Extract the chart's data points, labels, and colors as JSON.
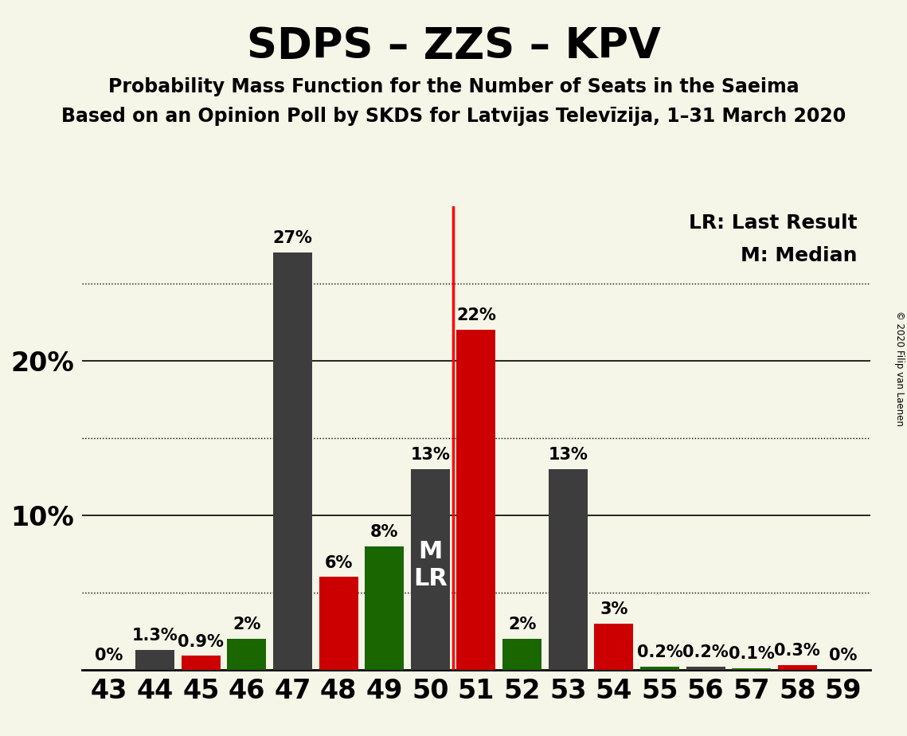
{
  "title": "SDPS – ZZS – KPV",
  "subtitle1": "Probability Mass Function for the Number of Seats in the Saeima",
  "subtitle2": "Based on an Opinion Poll by SKDS for Latvijas Televīzija, 1–31 March 2020",
  "copyright": "© 2020 Filip van Laenen",
  "legend_lr": "LR: Last Result",
  "legend_m": "M: Median",
  "seats": [
    43,
    44,
    45,
    46,
    47,
    48,
    49,
    50,
    51,
    52,
    53,
    54,
    55,
    56,
    57,
    58,
    59
  ],
  "values": [
    0.0,
    1.3,
    0.9,
    2.0,
    27.0,
    6.0,
    8.0,
    13.0,
    22.0,
    2.0,
    13.0,
    3.0,
    0.2,
    0.2,
    0.1,
    0.3,
    0.0
  ],
  "labels": [
    "0%",
    "1.3%",
    "0.9%",
    "2%",
    "27%",
    "6%",
    "8%",
    "13%",
    "22%",
    "2%",
    "13%",
    "3%",
    "0.2%",
    "0.2%",
    "0.1%",
    "0.3%",
    "0%"
  ],
  "colors": [
    "#3d3d3d",
    "#3d3d3d",
    "#cc0000",
    "#1a6600",
    "#3d3d3d",
    "#cc0000",
    "#1a6600",
    "#3d3d3d",
    "#cc0000",
    "#1a6600",
    "#3d3d3d",
    "#cc0000",
    "#1a6600",
    "#3d3d3d",
    "#1a6600",
    "#cc0000",
    "#1a6600"
  ],
  "median_seat": 50,
  "lr_seat": 51,
  "ylim": [
    0,
    30
  ],
  "grid_lines": [
    5,
    10,
    15,
    20,
    25
  ],
  "solid_lines": [
    10,
    20
  ],
  "background_color": "#f5f5e8",
  "title_fontsize": 38,
  "subtitle_fontsize": 17,
  "label_fontsize": 15,
  "tick_fontsize": 24,
  "legend_fontsize": 18,
  "mlr_fontsize": 22
}
